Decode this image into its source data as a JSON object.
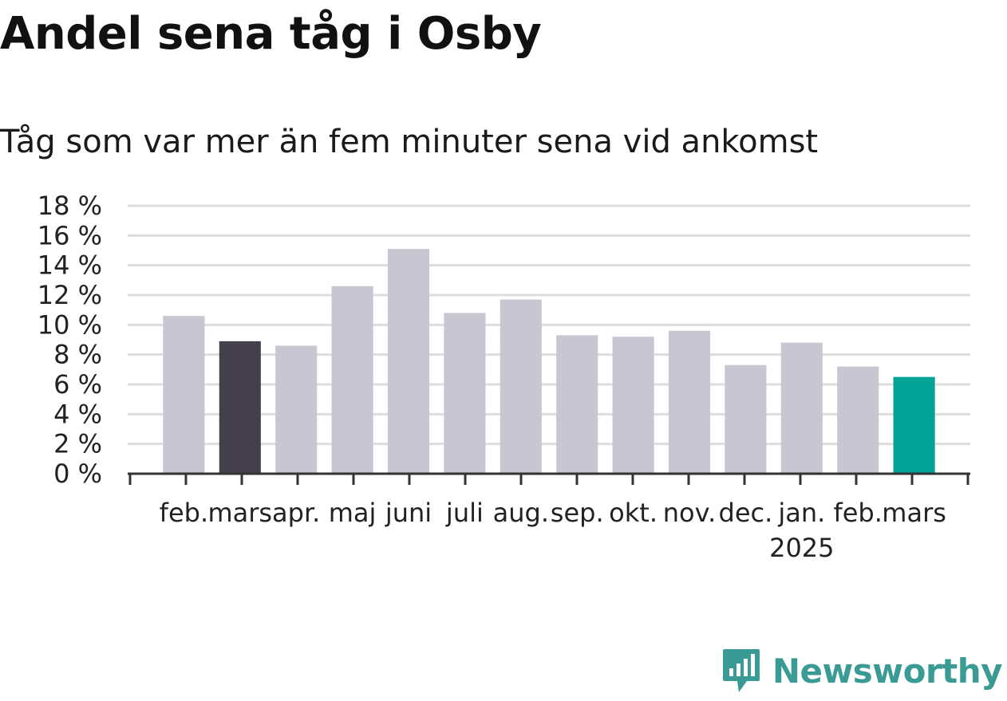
{
  "chart_data": {
    "type": "bar",
    "title": "Andel sena tåg i Osby",
    "subtitle": "Tåg som var mer än fem minuter sena vid ankomst",
    "categories": [
      "feb.",
      "mars",
      "apr.",
      "maj",
      "juni",
      "juli",
      "aug.",
      "sep.",
      "okt.",
      "nov.",
      "dec.",
      "jan.",
      "feb.",
      "mars"
    ],
    "year_labels": [
      {
        "category_index": 11,
        "label": "2025"
      }
    ],
    "values": [
      10.6,
      8.9,
      8.6,
      12.6,
      15.1,
      10.8,
      11.7,
      9.3,
      9.2,
      9.6,
      7.3,
      8.8,
      7.2,
      6.5
    ],
    "value_unit": "%",
    "ylim": [
      0,
      18
    ],
    "yticks": [
      0,
      2,
      4,
      6,
      8,
      10,
      12,
      14,
      16,
      18
    ],
    "ytick_labels": [
      "0 %",
      "2 %",
      "4 %",
      "6 %",
      "8 %",
      "10 %",
      "12 %",
      "14 %",
      "16 %",
      "18 %"
    ],
    "xlabel": "",
    "ylabel": "",
    "grid": true,
    "legend": false,
    "colors": {
      "default": "#c8c6d0",
      "previous_year_same_month": "#43404c",
      "latest": "#00a396",
      "grid": "#dddddd",
      "axis": "#333333"
    },
    "highlight": {
      "1": "previous_year_same_month",
      "13": "latest"
    }
  },
  "branding": {
    "logo_text": "Newsworthy",
    "logo_icon": "newsworthy-chart-bubble-icon",
    "logo_color": "#3a9b94"
  }
}
